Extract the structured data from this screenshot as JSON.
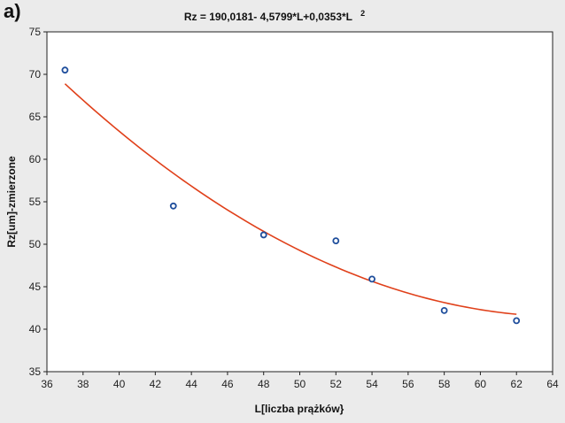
{
  "panel_label": "a)",
  "chart_data": {
    "type": "scatter",
    "title": "Rz = 190,0181- 4,5799*L+0,0353*L",
    "title_superscript": "2",
    "xlabel": "L[liczba prążków}",
    "ylabel": "Rz[um]-zmierzone",
    "xlim": [
      36,
      64
    ],
    "ylim": [
      35,
      75
    ],
    "xticks": [
      36,
      38,
      40,
      42,
      44,
      46,
      48,
      50,
      52,
      54,
      56,
      58,
      60,
      62,
      64
    ],
    "yticks": [
      35,
      40,
      45,
      50,
      55,
      60,
      65,
      70,
      75
    ],
    "grid": false,
    "legend": "none",
    "series": [
      {
        "kind": "points",
        "color": "#1f4e9c",
        "x": [
          37,
          43,
          48,
          52,
          54,
          58,
          62
        ],
        "y": [
          70.5,
          54.5,
          51.1,
          50.4,
          45.9,
          42.2,
          41.0
        ]
      },
      {
        "kind": "fit-curve",
        "color": "#e0401a",
        "coefficients": [
          190.0181,
          -4.5799,
          0.0353
        ],
        "x_range": [
          37,
          62
        ]
      }
    ]
  }
}
